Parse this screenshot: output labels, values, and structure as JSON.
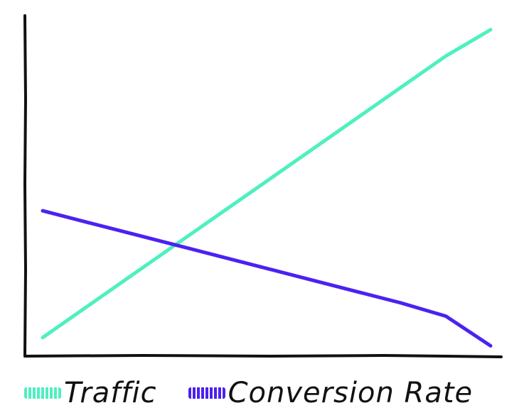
{
  "chart_data": {
    "type": "line",
    "title": "",
    "xlabel": "",
    "ylabel": "",
    "grid": false,
    "legend_placement": "bottom",
    "x": [
      0,
      1,
      2,
      3,
      4,
      5,
      6,
      7,
      8,
      9,
      10
    ],
    "series": [
      {
        "name": "Traffic",
        "color": "#4EF0C0",
        "values": [
          3.5,
          13.0,
          22.5,
          32.0,
          41.5,
          51.0,
          60.5,
          70.0,
          79.5,
          89.0,
          97.0
        ]
      },
      {
        "name": "Conversion Rate",
        "color": "#4B22F0",
        "values": [
          42.0,
          38.5,
          35.0,
          31.5,
          28.0,
          24.5,
          21.0,
          17.5,
          14.0,
          10.0,
          1.0
        ]
      }
    ],
    "ylim": [
      0,
      100
    ],
    "xlim": [
      0,
      10
    ]
  }
}
